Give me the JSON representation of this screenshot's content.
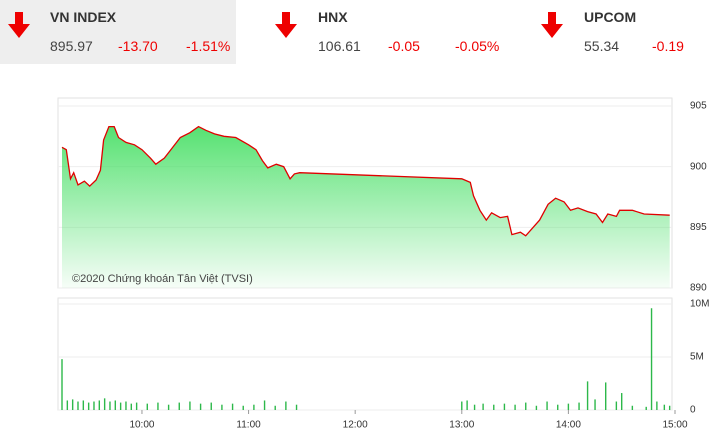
{
  "header": {
    "indices": [
      {
        "name": "VN INDEX",
        "price": "895.97",
        "change": "-13.70",
        "percent": "-1.51%"
      },
      {
        "name": "HNX",
        "price": "106.61",
        "change": "-0.05",
        "percent": "-0.05%"
      },
      {
        "name": "UPCOM",
        "price": "55.34",
        "change": "-0.19"
      }
    ]
  },
  "chart_data": [
    {
      "type": "area",
      "annotation": "©2020 Chứng khoán Tân Việt (TVSI)",
      "color": "#e00000",
      "fill": "#4de06a",
      "x": [
        9.25,
        9.29,
        9.33,
        9.36,
        9.4,
        9.46,
        9.51,
        9.57,
        9.61,
        9.64,
        9.69,
        9.74,
        9.78,
        9.85,
        9.93,
        10.0,
        10.08,
        10.13,
        10.21,
        10.28,
        10.36,
        10.45,
        10.53,
        10.6,
        10.68,
        10.77,
        10.88,
        11.0,
        11.07,
        11.13,
        11.18,
        11.26,
        11.33,
        11.39,
        11.43,
        11.48,
        13.0,
        13.08,
        13.11,
        13.17,
        13.23,
        13.28,
        13.36,
        13.43,
        13.47,
        13.55,
        13.6,
        13.68,
        13.73,
        13.81,
        13.88,
        13.96,
        14.02,
        14.09,
        14.18,
        14.26,
        14.32,
        14.37,
        14.45,
        14.48,
        14.6,
        14.71,
        14.95
      ],
      "values": [
        901.6,
        901.4,
        899.0,
        899.5,
        898.5,
        898.8,
        898.4,
        898.9,
        899.7,
        902.2,
        903.3,
        903.3,
        902.4,
        902.0,
        901.8,
        901.4,
        900.7,
        900.2,
        900.7,
        901.5,
        902.4,
        902.8,
        903.3,
        903.0,
        902.7,
        902.5,
        902.4,
        901.8,
        901.4,
        900.5,
        899.9,
        900.2,
        900.0,
        899.0,
        899.4,
        899.5,
        899.0,
        898.7,
        897.6,
        896.4,
        895.6,
        896.2,
        895.8,
        895.9,
        894.4,
        894.6,
        894.3,
        895.1,
        895.6,
        896.9,
        897.4,
        897.1,
        896.4,
        896.6,
        896.3,
        896.1,
        895.4,
        896.1,
        895.9,
        896.4,
        896.4,
        896.1,
        896.0
      ],
      "xlim": [
        9.25,
        15.0
      ],
      "ylim": [
        890,
        905
      ],
      "yticks": [
        890,
        895,
        900,
        905
      ],
      "grid": true
    },
    {
      "type": "bar",
      "color": "#2db84a",
      "x": [
        9.25,
        9.3,
        9.35,
        9.4,
        9.45,
        9.5,
        9.55,
        9.6,
        9.65,
        9.7,
        9.75,
        9.8,
        9.85,
        9.9,
        9.95,
        10.05,
        10.15,
        10.25,
        10.35,
        10.45,
        10.55,
        10.65,
        10.75,
        10.85,
        10.95,
        11.05,
        11.15,
        11.25,
        11.35,
        11.45,
        13.0,
        13.05,
        13.12,
        13.2,
        13.3,
        13.4,
        13.5,
        13.6,
        13.7,
        13.8,
        13.9,
        14.0,
        14.1,
        14.18,
        14.25,
        14.35,
        14.45,
        14.5,
        14.6,
        14.73,
        14.78,
        14.83,
        14.9,
        14.95
      ],
      "values": [
        4800000,
        900000,
        1000000,
        800000,
        900000,
        700000,
        800000,
        900000,
        1100000,
        800000,
        900000,
        700000,
        800000,
        600000,
        700000,
        600000,
        700000,
        500000,
        700000,
        800000,
        600000,
        700000,
        500000,
        600000,
        400000,
        500000,
        900000,
        400000,
        800000,
        500000,
        800000,
        900000,
        500000,
        600000,
        500000,
        600000,
        500000,
        700000,
        400000,
        800000,
        500000,
        600000,
        700000,
        2700000,
        1000000,
        2600000,
        800000,
        1600000,
        400000,
        300000,
        9600000,
        800000,
        500000,
        400000
      ],
      "xlim": [
        9.25,
        15.0
      ],
      "ylim": [
        0,
        10000000
      ],
      "yticks": [
        {
          "value": 0,
          "label": "0"
        },
        {
          "value": 5000000,
          "label": "5M"
        },
        {
          "value": 10000000,
          "label": "10M"
        }
      ],
      "xticks": [
        {
          "value": 10,
          "label": "10:00"
        },
        {
          "value": 11,
          "label": "11:00"
        },
        {
          "value": 12,
          "label": "12:00"
        },
        {
          "value": 13,
          "label": "13:00"
        },
        {
          "value": 14,
          "label": "14:00"
        },
        {
          "value": 15,
          "label": "15:00"
        }
      ],
      "grid": true
    }
  ]
}
